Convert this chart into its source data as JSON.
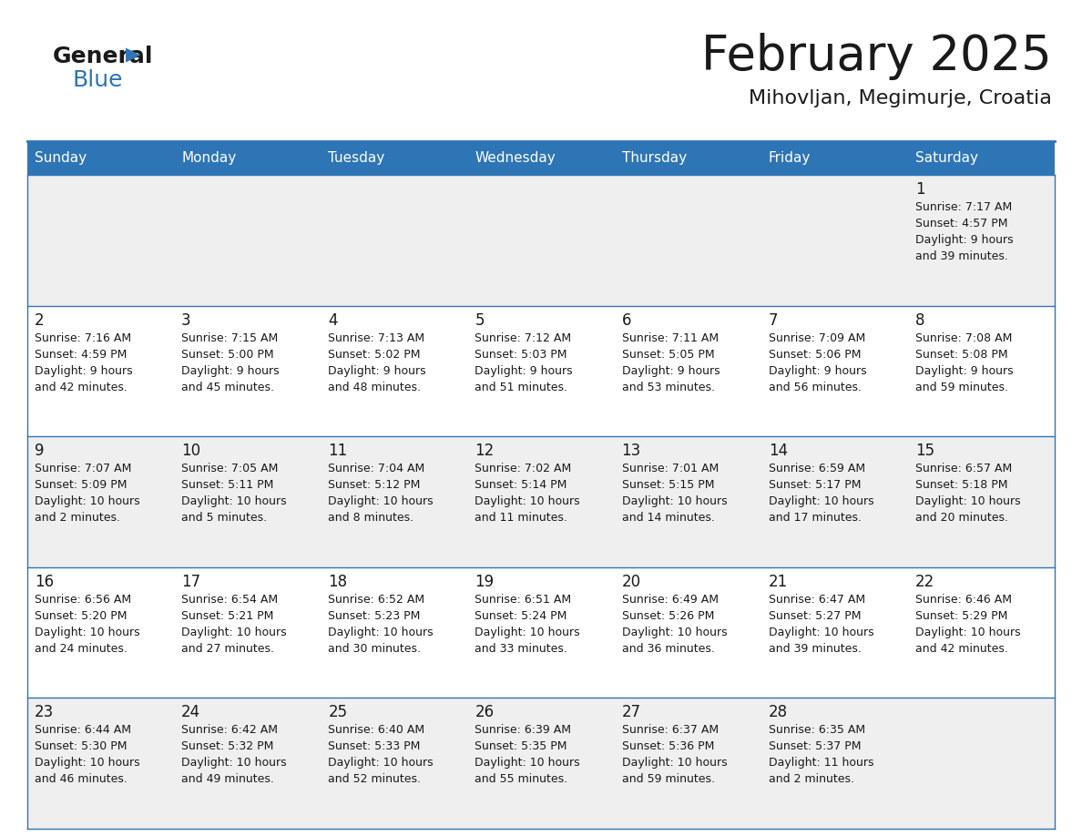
{
  "title": "February 2025",
  "subtitle": "Mihovljan, Megimurje, Croatia",
  "header_bg": "#2E75B6",
  "header_text_color": "#FFFFFF",
  "cell_bg_odd": "#EFEFEF",
  "cell_bg_even": "#FFFFFF",
  "border_color": "#2E75B6",
  "text_color": "#1a1a1a",
  "day_names": [
    "Sunday",
    "Monday",
    "Tuesday",
    "Wednesday",
    "Thursday",
    "Friday",
    "Saturday"
  ],
  "days": [
    {
      "day": 1,
      "col": 6,
      "row": 0,
      "sunrise": "7:17 AM",
      "sunset": "4:57 PM",
      "daylight": "9 hours and 39 minutes."
    },
    {
      "day": 2,
      "col": 0,
      "row": 1,
      "sunrise": "7:16 AM",
      "sunset": "4:59 PM",
      "daylight": "9 hours and 42 minutes."
    },
    {
      "day": 3,
      "col": 1,
      "row": 1,
      "sunrise": "7:15 AM",
      "sunset": "5:00 PM",
      "daylight": "9 hours and 45 minutes."
    },
    {
      "day": 4,
      "col": 2,
      "row": 1,
      "sunrise": "7:13 AM",
      "sunset": "5:02 PM",
      "daylight": "9 hours and 48 minutes."
    },
    {
      "day": 5,
      "col": 3,
      "row": 1,
      "sunrise": "7:12 AM",
      "sunset": "5:03 PM",
      "daylight": "9 hours and 51 minutes."
    },
    {
      "day": 6,
      "col": 4,
      "row": 1,
      "sunrise": "7:11 AM",
      "sunset": "5:05 PM",
      "daylight": "9 hours and 53 minutes."
    },
    {
      "day": 7,
      "col": 5,
      "row": 1,
      "sunrise": "7:09 AM",
      "sunset": "5:06 PM",
      "daylight": "9 hours and 56 minutes."
    },
    {
      "day": 8,
      "col": 6,
      "row": 1,
      "sunrise": "7:08 AM",
      "sunset": "5:08 PM",
      "daylight": "9 hours and 59 minutes."
    },
    {
      "day": 9,
      "col": 0,
      "row": 2,
      "sunrise": "7:07 AM",
      "sunset": "5:09 PM",
      "daylight": "10 hours and 2 minutes."
    },
    {
      "day": 10,
      "col": 1,
      "row": 2,
      "sunrise": "7:05 AM",
      "sunset": "5:11 PM",
      "daylight": "10 hours and 5 minutes."
    },
    {
      "day": 11,
      "col": 2,
      "row": 2,
      "sunrise": "7:04 AM",
      "sunset": "5:12 PM",
      "daylight": "10 hours and 8 minutes."
    },
    {
      "day": 12,
      "col": 3,
      "row": 2,
      "sunrise": "7:02 AM",
      "sunset": "5:14 PM",
      "daylight": "10 hours and 11 minutes."
    },
    {
      "day": 13,
      "col": 4,
      "row": 2,
      "sunrise": "7:01 AM",
      "sunset": "5:15 PM",
      "daylight": "10 hours and 14 minutes."
    },
    {
      "day": 14,
      "col": 5,
      "row": 2,
      "sunrise": "6:59 AM",
      "sunset": "5:17 PM",
      "daylight": "10 hours and 17 minutes."
    },
    {
      "day": 15,
      "col": 6,
      "row": 2,
      "sunrise": "6:57 AM",
      "sunset": "5:18 PM",
      "daylight": "10 hours and 20 minutes."
    },
    {
      "day": 16,
      "col": 0,
      "row": 3,
      "sunrise": "6:56 AM",
      "sunset": "5:20 PM",
      "daylight": "10 hours and 24 minutes."
    },
    {
      "day": 17,
      "col": 1,
      "row": 3,
      "sunrise": "6:54 AM",
      "sunset": "5:21 PM",
      "daylight": "10 hours and 27 minutes."
    },
    {
      "day": 18,
      "col": 2,
      "row": 3,
      "sunrise": "6:52 AM",
      "sunset": "5:23 PM",
      "daylight": "10 hours and 30 minutes."
    },
    {
      "day": 19,
      "col": 3,
      "row": 3,
      "sunrise": "6:51 AM",
      "sunset": "5:24 PM",
      "daylight": "10 hours and 33 minutes."
    },
    {
      "day": 20,
      "col": 4,
      "row": 3,
      "sunrise": "6:49 AM",
      "sunset": "5:26 PM",
      "daylight": "10 hours and 36 minutes."
    },
    {
      "day": 21,
      "col": 5,
      "row": 3,
      "sunrise": "6:47 AM",
      "sunset": "5:27 PM",
      "daylight": "10 hours and 39 minutes."
    },
    {
      "day": 22,
      "col": 6,
      "row": 3,
      "sunrise": "6:46 AM",
      "sunset": "5:29 PM",
      "daylight": "10 hours and 42 minutes."
    },
    {
      "day": 23,
      "col": 0,
      "row": 4,
      "sunrise": "6:44 AM",
      "sunset": "5:30 PM",
      "daylight": "10 hours and 46 minutes."
    },
    {
      "day": 24,
      "col": 1,
      "row": 4,
      "sunrise": "6:42 AM",
      "sunset": "5:32 PM",
      "daylight": "10 hours and 49 minutes."
    },
    {
      "day": 25,
      "col": 2,
      "row": 4,
      "sunrise": "6:40 AM",
      "sunset": "5:33 PM",
      "daylight": "10 hours and 52 minutes."
    },
    {
      "day": 26,
      "col": 3,
      "row": 4,
      "sunrise": "6:39 AM",
      "sunset": "5:35 PM",
      "daylight": "10 hours and 55 minutes."
    },
    {
      "day": 27,
      "col": 4,
      "row": 4,
      "sunrise": "6:37 AM",
      "sunset": "5:36 PM",
      "daylight": "10 hours and 59 minutes."
    },
    {
      "day": 28,
      "col": 5,
      "row": 4,
      "sunrise": "6:35 AM",
      "sunset": "5:37 PM",
      "daylight": "11 hours and 2 minutes."
    }
  ]
}
